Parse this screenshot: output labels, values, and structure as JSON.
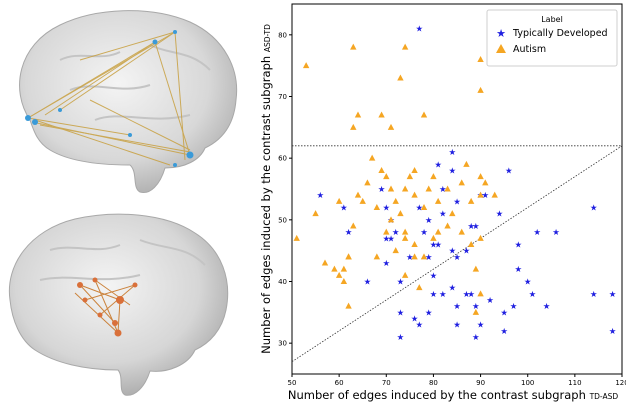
{
  "chart_data": {
    "type": "scatter",
    "xlabel": "Number of edges induced by the contrast subgraph",
    "xlabel_sub": "TD-ASD",
    "ylabel": "Number of edges induced by the contrast subgraph",
    "ylabel_sub": "ASD-TD",
    "xlim": [
      50,
      120
    ],
    "ylim": [
      25,
      85
    ],
    "xticks": [
      "50",
      "60",
      "70",
      "80",
      "90",
      "100",
      "110",
      "120"
    ],
    "yticks": [
      "30",
      "40",
      "50",
      "60",
      "70",
      "80"
    ],
    "grid": false,
    "legend_position": "top-right",
    "legend_title": "Label",
    "threshold_y": 62,
    "diagonal_from": [
      50,
      27
    ],
    "diagonal_to": [
      120,
      62
    ],
    "series": [
      {
        "name": "Typically Developed",
        "marker": "star",
        "color": "#1f1fe0",
        "points": [
          [
            77,
            81
          ],
          [
            56,
            54
          ],
          [
            61,
            52
          ],
          [
            62,
            48
          ],
          [
            70,
            47
          ],
          [
            71,
            47
          ],
          [
            72,
            48
          ],
          [
            69,
            55
          ],
          [
            70,
            52
          ],
          [
            71,
            50
          ],
          [
            77,
            52
          ],
          [
            78,
            48
          ],
          [
            79,
            50
          ],
          [
            82,
            51
          ],
          [
            82,
            55
          ],
          [
            84,
            58
          ],
          [
            84,
            61
          ],
          [
            81,
            59
          ],
          [
            85,
            53
          ],
          [
            90,
            54
          ],
          [
            91,
            54
          ],
          [
            94,
            51
          ],
          [
            96,
            58
          ],
          [
            88,
            49
          ],
          [
            89,
            49
          ],
          [
            85,
            44
          ],
          [
            84,
            45
          ],
          [
            79,
            44
          ],
          [
            75,
            44
          ],
          [
            73,
            40
          ],
          [
            70,
            43
          ],
          [
            66,
            40
          ],
          [
            73,
            35
          ],
          [
            76,
            34
          ],
          [
            79,
            35
          ],
          [
            80,
            38
          ],
          [
            82,
            38
          ],
          [
            85,
            36
          ],
          [
            84,
            39
          ],
          [
            85,
            33
          ],
          [
            87,
            38
          ],
          [
            88,
            38
          ],
          [
            89,
            36
          ],
          [
            90,
            33
          ],
          [
            92,
            37
          ],
          [
            95,
            32
          ],
          [
            95,
            35
          ],
          [
            97,
            36
          ],
          [
            98,
            42
          ],
          [
            98,
            46
          ],
          [
            100,
            40
          ],
          [
            101,
            38
          ],
          [
            102,
            48
          ],
          [
            104,
            36
          ],
          [
            106,
            48
          ],
          [
            114,
            52
          ],
          [
            114,
            38
          ],
          [
            118,
            38
          ],
          [
            118,
            32
          ],
          [
            73,
            31
          ],
          [
            89,
            31
          ],
          [
            80,
            41
          ],
          [
            80,
            46
          ],
          [
            81,
            46
          ],
          [
            87,
            45
          ],
          [
            77,
            33
          ]
        ]
      },
      {
        "name": "Autism",
        "marker": "triangle",
        "color": "#f5a623",
        "points": [
          [
            53,
            75
          ],
          [
            63,
            78
          ],
          [
            74,
            78
          ],
          [
            73,
            73
          ],
          [
            90,
            76
          ],
          [
            90,
            71
          ],
          [
            63,
            65
          ],
          [
            64,
            67
          ],
          [
            69,
            67
          ],
          [
            71,
            65
          ],
          [
            78,
            67
          ],
          [
            51,
            47
          ],
          [
            57,
            43
          ],
          [
            59,
            42
          ],
          [
            60,
            41
          ],
          [
            61,
            40
          ],
          [
            61,
            42
          ],
          [
            62,
            36
          ],
          [
            62,
            44
          ],
          [
            55,
            51
          ],
          [
            60,
            53
          ],
          [
            63,
            49
          ],
          [
            64,
            54
          ],
          [
            65,
            53
          ],
          [
            66,
            56
          ],
          [
            67,
            60
          ],
          [
            68,
            52
          ],
          [
            69,
            58
          ],
          [
            70,
            57
          ],
          [
            71,
            55
          ],
          [
            72,
            53
          ],
          [
            73,
            51
          ],
          [
            74,
            48
          ],
          [
            74,
            55
          ],
          [
            75,
            57
          ],
          [
            76,
            54
          ],
          [
            76,
            58
          ],
          [
            78,
            52
          ],
          [
            79,
            55
          ],
          [
            80,
            57
          ],
          [
            81,
            53
          ],
          [
            83,
            55
          ],
          [
            84,
            51
          ],
          [
            86,
            56
          ],
          [
            87,
            59
          ],
          [
            88,
            53
          ],
          [
            90,
            57
          ],
          [
            91,
            56
          ],
          [
            90,
            54
          ],
          [
            93,
            54
          ],
          [
            62,
            44
          ],
          [
            70,
            48
          ],
          [
            72,
            45
          ],
          [
            74,
            47
          ],
          [
            76,
            46
          ],
          [
            78,
            44
          ],
          [
            80,
            47
          ],
          [
            83,
            49
          ],
          [
            86,
            48
          ],
          [
            88,
            46
          ],
          [
            90,
            47
          ],
          [
            68,
            44
          ],
          [
            89,
            42
          ],
          [
            90,
            38
          ],
          [
            77,
            39
          ],
          [
            76,
            44
          ],
          [
            89,
            35
          ],
          [
            81,
            48
          ],
          [
            71,
            50
          ],
          [
            74,
            41
          ]
        ]
      }
    ]
  }
}
